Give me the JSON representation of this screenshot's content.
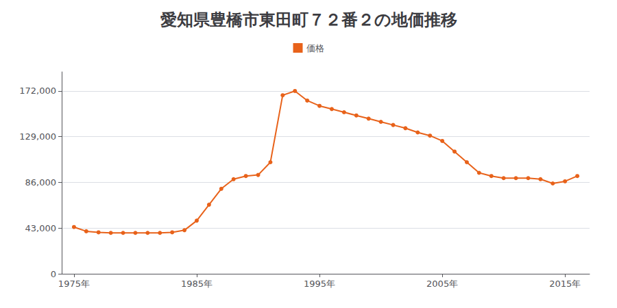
{
  "chart_data": {
    "type": "line",
    "title": "愛知県豊橋市東田町７２番２の地価推移",
    "x": [
      1975,
      1976,
      1977,
      1978,
      1979,
      1980,
      1981,
      1982,
      1983,
      1984,
      1985,
      1986,
      1987,
      1988,
      1989,
      1990,
      1991,
      1992,
      1993,
      1994,
      1995,
      1996,
      1997,
      1998,
      1999,
      2000,
      2001,
      2002,
      2003,
      2004,
      2005,
      2006,
      2007,
      2008,
      2009,
      2010,
      2011,
      2012,
      2013,
      2014,
      2015,
      2016
    ],
    "series": [
      {
        "name": "価格",
        "color": "#E8621A",
        "marker": "circle",
        "values": [
          44000,
          40000,
          39000,
          38500,
          38500,
          38500,
          38500,
          38500,
          39000,
          41000,
          50000,
          65000,
          80000,
          89000,
          92000,
          93000,
          105000,
          168000,
          172000,
          163000,
          158000,
          155000,
          152000,
          149000,
          146000,
          143000,
          140000,
          137000,
          133000,
          130000,
          125000,
          115000,
          105000,
          95000,
          92000,
          90000,
          90000,
          90000,
          89000,
          85000,
          87000,
          92000
        ]
      }
    ],
    "xlim": [
      1974,
      2017
    ],
    "xticks": [
      {
        "value": 1975,
        "label": "1975年"
      },
      {
        "value": 1985,
        "label": "1985年"
      },
      {
        "value": 1995,
        "label": "1995年"
      },
      {
        "value": 2005,
        "label": "2005年"
      },
      {
        "value": 2015,
        "label": "2015年"
      }
    ],
    "ylim": [
      0,
      190000
    ],
    "yticks": [
      0,
      {
        "value": 43000,
        "label": "43,000"
      },
      {
        "value": 86000,
        "label": "86,000"
      },
      {
        "value": 129000,
        "label": "129,000"
      },
      {
        "value": 172000,
        "label": "172,000"
      }
    ],
    "grid": true,
    "legend": "top"
  }
}
